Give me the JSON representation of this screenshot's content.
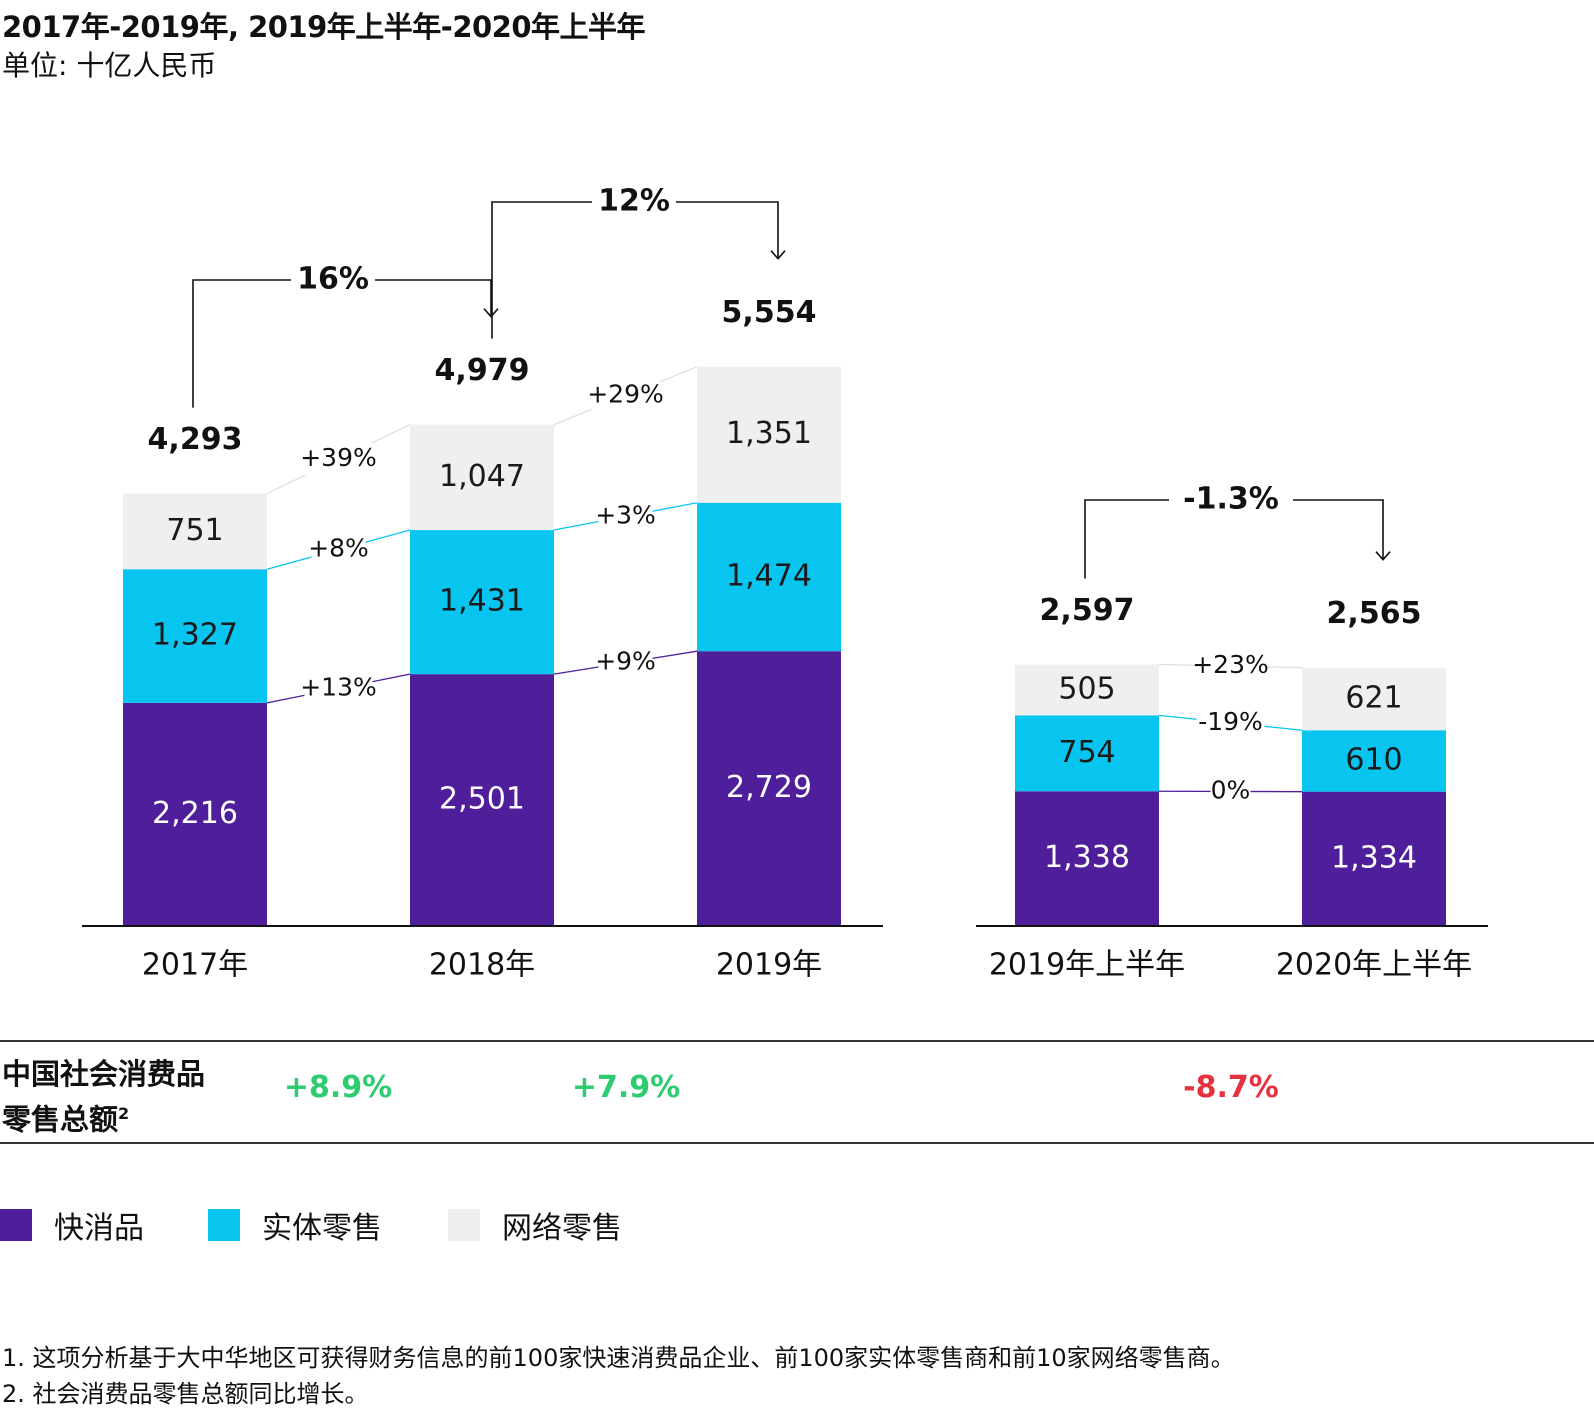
{
  "title": "2017年-2019年, 2019年上半年-2020年上半年",
  "subtitle": "单位: 十亿人民币",
  "colors": {
    "fmcg": "#4f1f9b",
    "physical": "#08c5f0",
    "online": "#efefef",
    "positive": "#2ecc71",
    "negative": "#e8303f"
  },
  "chart_data": [
    {
      "type": "bar",
      "stacked": true,
      "categories": [
        "2017年",
        "2018年",
        "2019年"
      ],
      "series": [
        {
          "name": "快消品",
          "values": [
            "2,216",
            "2,501",
            "2,729"
          ]
        },
        {
          "name": "实体零售",
          "values": [
            "1,327",
            "1,431",
            "1,474"
          ]
        },
        {
          "name": "网络零售",
          "values": [
            "751",
            "1,047",
            "1,351"
          ]
        }
      ],
      "totals": [
        "4,293",
        "4,979",
        "5,554"
      ],
      "growth": [
        {
          "fmcg": "+13%",
          "physical": "+8%",
          "online": "+39%"
        },
        {
          "fmcg": "+9%",
          "physical": "+3%",
          "online": "+29%"
        }
      ],
      "total_growth": [
        "16%",
        "12%"
      ]
    },
    {
      "type": "bar",
      "stacked": true,
      "categories": [
        "2019年上半年",
        "2020年上半年"
      ],
      "series": [
        {
          "name": "快消品",
          "values": [
            "1,338",
            "1,334"
          ]
        },
        {
          "name": "实体零售",
          "values": [
            "754",
            "610"
          ]
        },
        {
          "name": "网络零售",
          "values": [
            "505",
            "621"
          ]
        }
      ],
      "totals": [
        "2,597",
        "2,565"
      ],
      "growth": [
        {
          "fmcg": "0%",
          "physical": "-19%",
          "online": "+23%"
        }
      ],
      "total_growth": [
        "-1.3%"
      ]
    }
  ],
  "retail_row": {
    "label_line1": "中国社会消费品",
    "label_line2": "零售总额",
    "label_sup": "2",
    "values": [
      "+8.9%",
      "+7.9%",
      "-8.7%"
    ]
  },
  "legend": [
    "快消品",
    "实体零售",
    "网络零售"
  ],
  "footnotes": [
    "1. 这项分析基于大中华地区可获得财务信息的前100家快速消费品企业、前100家实体零售商和前10家网络零售商。",
    "2. 社会消费品零售总额同比增长。"
  ]
}
